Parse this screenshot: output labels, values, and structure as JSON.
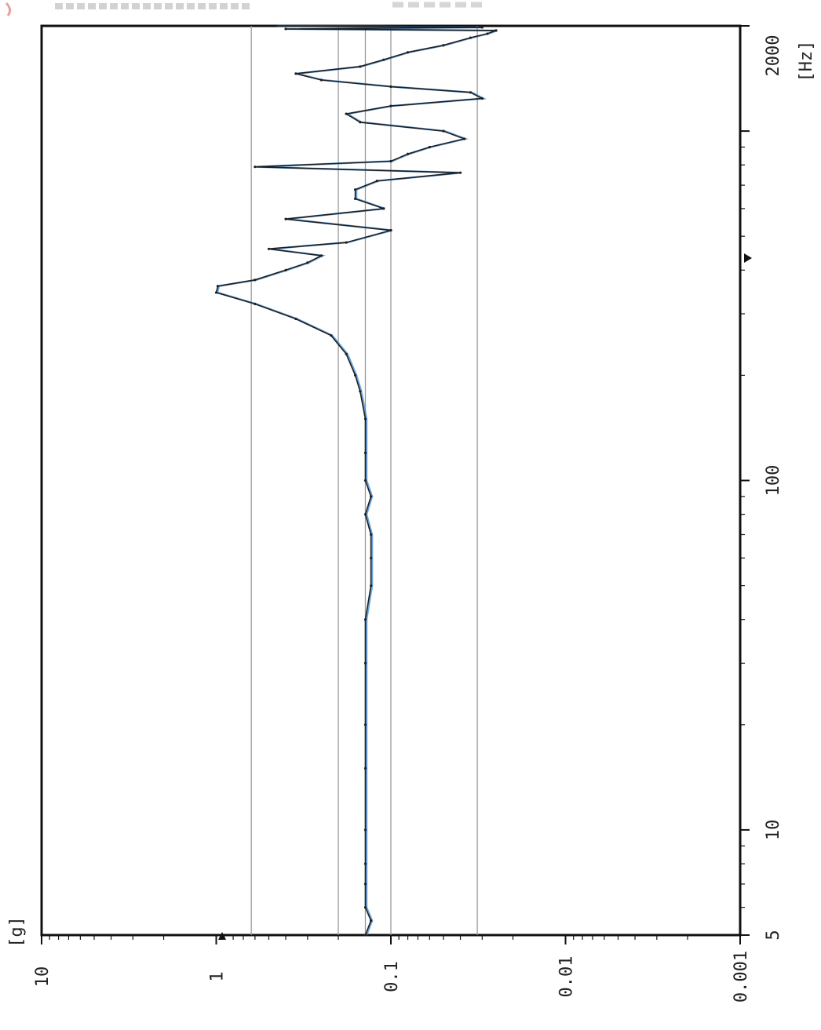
{
  "chart_data": {
    "type": "line",
    "orientation": "rotated-90-clockwise",
    "x_axis": {
      "label": "[Hz]",
      "scale": "log",
      "range": [
        5,
        2000
      ],
      "ticks": [
        "5",
        "10",
        "100",
        "2000"
      ]
    },
    "y_axis": {
      "label": "[g]",
      "scale": "log",
      "range": [
        0.001,
        10
      ],
      "ticks": [
        "10",
        "1",
        "0.1",
        "0.01",
        "0.001"
      ]
    },
    "reference_levels_g": [
      0.63,
      0.2,
      0.14,
      0.1,
      0.032
    ],
    "grid": "horizontal reference lines only",
    "colors": {
      "trace": "#1f1f1f",
      "accents": [
        "#2a7fd0",
        "#d8b23a",
        "#3a9a58"
      ],
      "frame": "#111111",
      "gridline": "#9a9a9a"
    },
    "series": [
      {
        "x": [
          5,
          5.5,
          6,
          7,
          8,
          10,
          15,
          20,
          30,
          40,
          50,
          60,
          70,
          80,
          90,
          100,
          120,
          150,
          180,
          200,
          230,
          260,
          290,
          320,
          345,
          360,
          375,
          400,
          420,
          440,
          460,
          480,
          520,
          560,
          600,
          640,
          680,
          720,
          760,
          790,
          820,
          860,
          900,
          950,
          1000,
          1060,
          1120,
          1180,
          1240,
          1290,
          1340,
          1400,
          1460,
          1530,
          1600,
          1680,
          1760,
          1850,
          1900,
          1940,
          1960,
          1980,
          2000
        ],
        "y": [
          0.14,
          0.13,
          0.14,
          0.14,
          0.14,
          0.14,
          0.14,
          0.14,
          0.14,
          0.14,
          0.13,
          0.13,
          0.13,
          0.14,
          0.13,
          0.14,
          0.14,
          0.14,
          0.15,
          0.16,
          0.18,
          0.22,
          0.35,
          0.6,
          1.0,
          0.98,
          0.6,
          0.4,
          0.3,
          0.25,
          0.5,
          0.18,
          0.1,
          0.4,
          0.11,
          0.16,
          0.16,
          0.12,
          0.04,
          0.6,
          0.1,
          0.08,
          0.06,
          0.038,
          0.05,
          0.15,
          0.18,
          0.1,
          0.03,
          0.035,
          0.1,
          0.25,
          0.35,
          0.15,
          0.11,
          0.08,
          0.05,
          0.035,
          0.028,
          0.025,
          0.4,
          0.03,
          0.45
        ]
      }
    ]
  }
}
